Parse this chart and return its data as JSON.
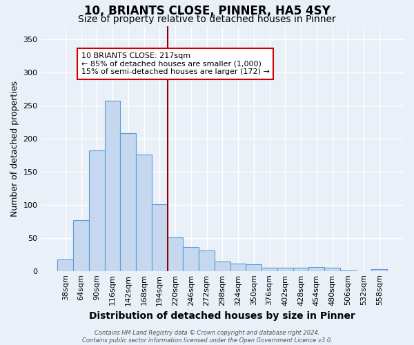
{
  "title": "10, BRIANTS CLOSE, PINNER, HA5 4SY",
  "subtitle": "Size of property relative to detached houses in Pinner",
  "xlabel": "Distribution of detached houses by size in Pinner",
  "ylabel": "Number of detached properties",
  "bar_labels": [
    "38sqm",
    "64sqm",
    "90sqm",
    "116sqm",
    "142sqm",
    "168sqm",
    "194sqm",
    "220sqm",
    "246sqm",
    "272sqm",
    "298sqm",
    "324sqm",
    "350sqm",
    "376sqm",
    "402sqm",
    "428sqm",
    "454sqm",
    "480sqm",
    "506sqm",
    "532sqm",
    "558sqm"
  ],
  "bar_values": [
    17,
    77,
    182,
    257,
    208,
    176,
    101,
    51,
    36,
    31,
    14,
    11,
    10,
    5,
    5,
    5,
    6,
    5,
    1,
    0,
    3
  ],
  "bar_color": "#c5d8ef",
  "bar_edge_color": "#5b9bd5",
  "background_color": "#eaf0f8",
  "grid_color": "#ffffff",
  "vline_color": "#8b0000",
  "annotation_text": "10 BRIANTS CLOSE: 217sqm\n← 85% of detached houses are smaller (1,000)\n15% of semi-detached houses are larger (172) →",
  "annotation_box_color": "#ffffff",
  "annotation_box_edge_color": "#cc0000",
  "ylim": [
    0,
    370
  ],
  "yticks": [
    0,
    50,
    100,
    150,
    200,
    250,
    300,
    350
  ],
  "footer_text": "Contains HM Land Registry data © Crown copyright and database right 2024.\nContains public sector information licensed under the Open Government Licence v3.0.",
  "title_fontsize": 12,
  "subtitle_fontsize": 10,
  "xlabel_fontsize": 10,
  "ylabel_fontsize": 9,
  "tick_fontsize": 8,
  "annotation_fontsize": 8
}
